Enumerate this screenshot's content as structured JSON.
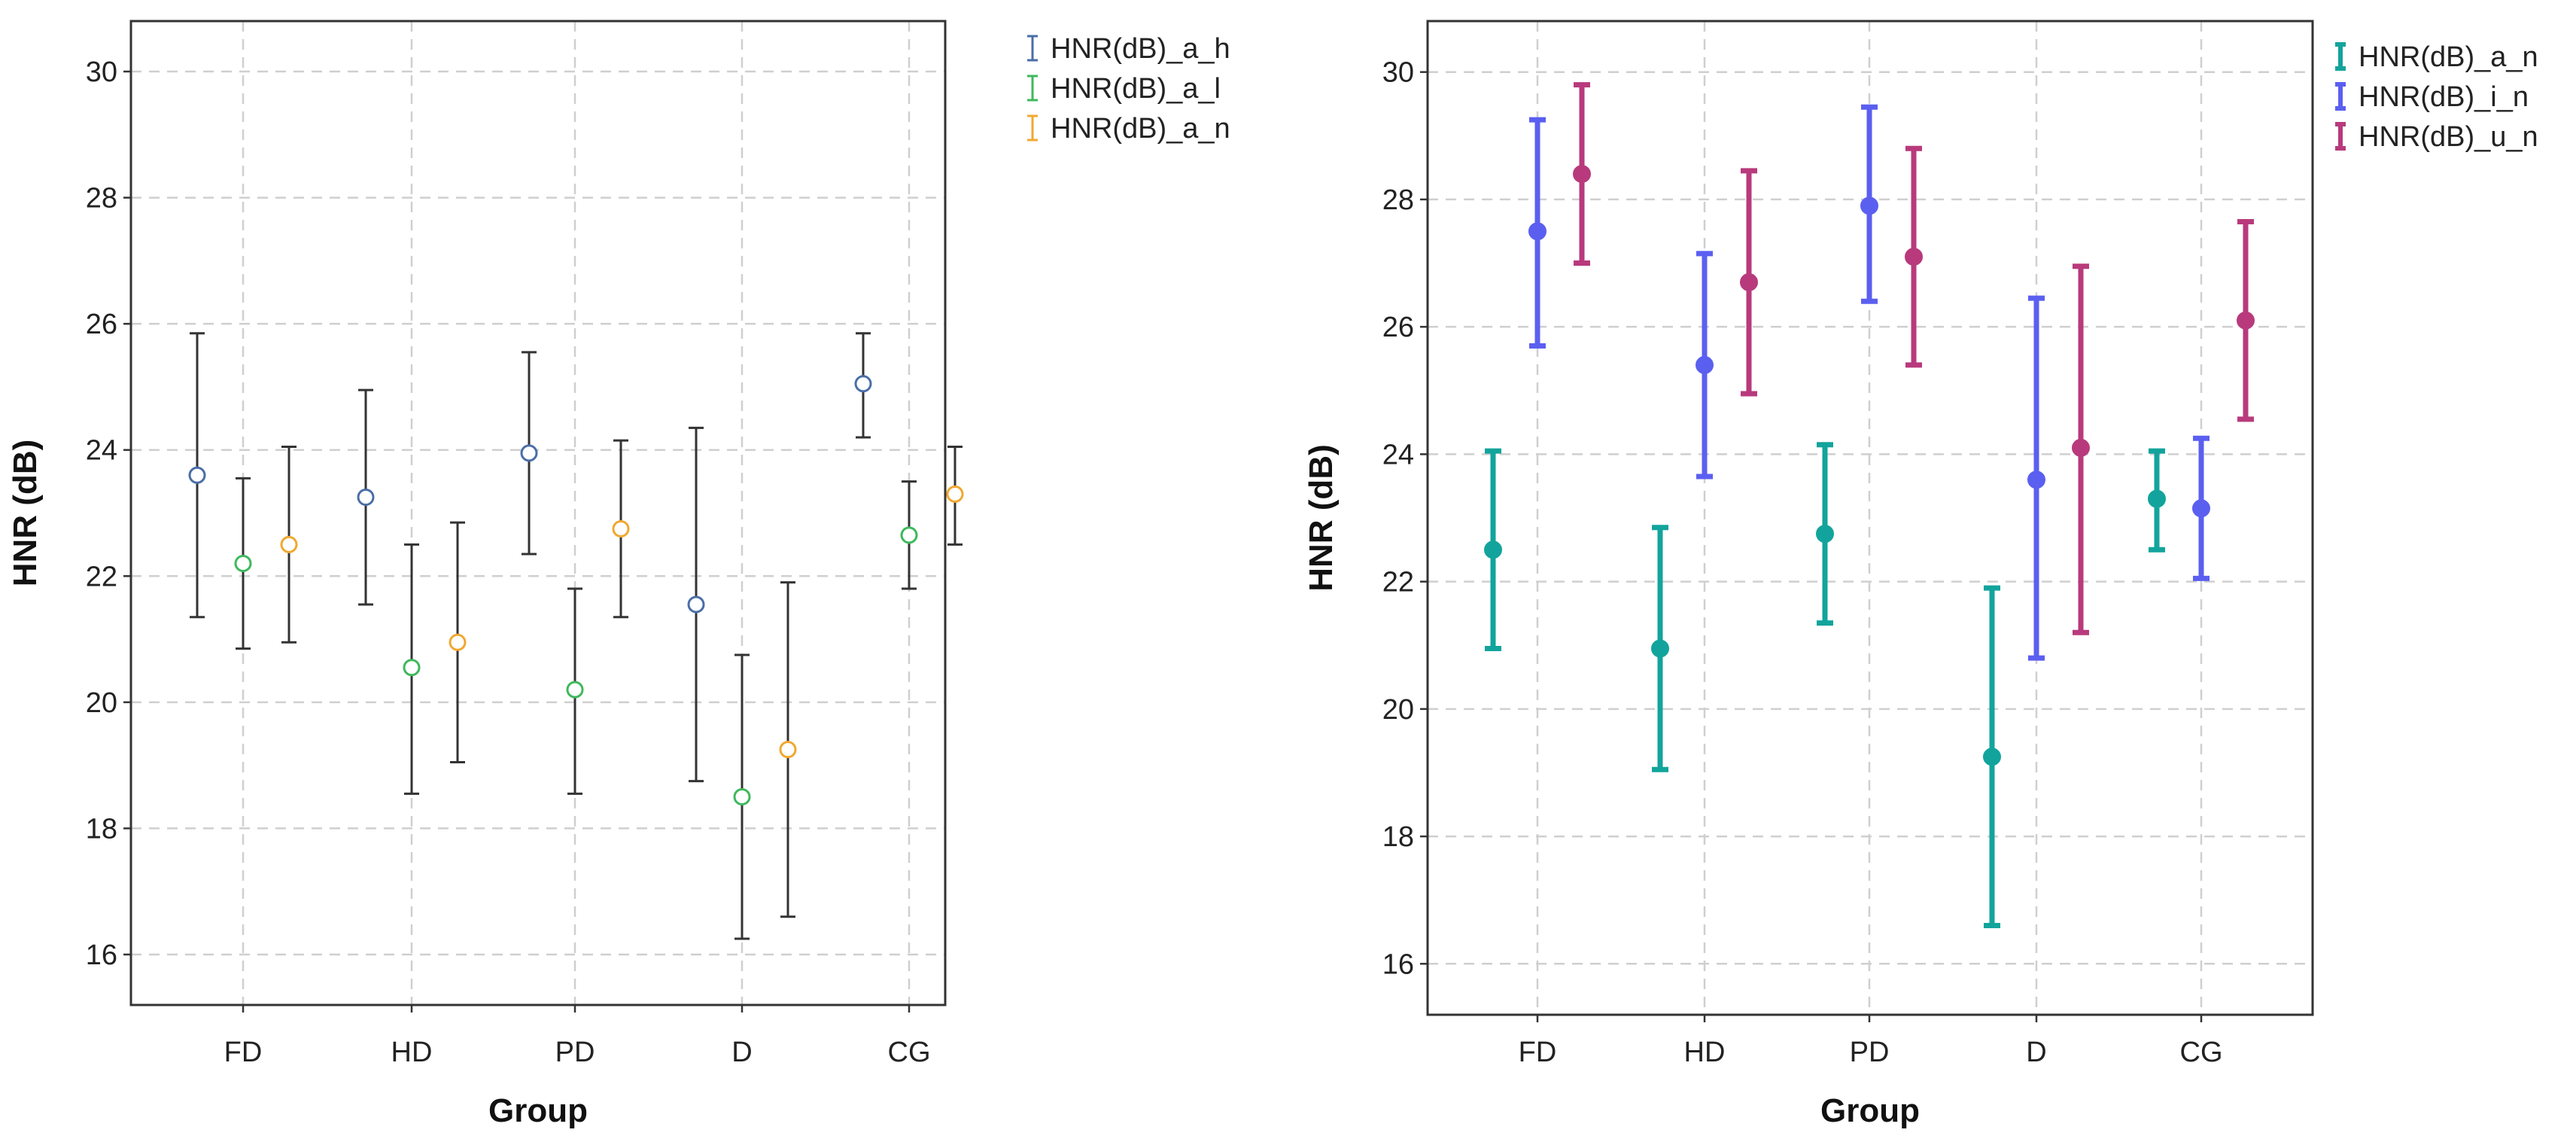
{
  "chart_data": [
    {
      "type": "errorbar",
      "style": "open-circle",
      "categories": [
        "FD",
        "HD",
        "PD",
        "D",
        "CG"
      ],
      "xlabel": "Group",
      "ylabel": "HNR (dB)",
      "ylim": [
        15.2,
        30.8
      ],
      "yticks": [
        16,
        18,
        20,
        22,
        24,
        26,
        28,
        30
      ],
      "grid": true,
      "legend_position": "outside-right-top",
      "series": [
        {
          "name": "HNR(dB)_a_h",
          "color": "#4a6ea8",
          "bar_color": "#333333",
          "values": [
            23.6,
            23.25,
            23.95,
            21.55,
            25.05
          ],
          "lower": [
            21.35,
            21.55,
            22.35,
            18.75,
            24.2
          ],
          "upper": [
            25.85,
            24.95,
            25.55,
            24.35,
            25.85
          ]
        },
        {
          "name": "HNR(dB)_a_l",
          "color": "#3fb85c",
          "bar_color": "#333333",
          "values": [
            22.2,
            20.55,
            20.2,
            18.5,
            22.65
          ],
          "lower": [
            20.85,
            18.55,
            18.55,
            16.25,
            21.8
          ],
          "upper": [
            23.55,
            22.5,
            21.8,
            20.75,
            23.5
          ]
        },
        {
          "name": "HNR(dB)_a_n",
          "color": "#f0a830",
          "bar_color": "#333333",
          "values": [
            22.5,
            20.95,
            22.75,
            19.25,
            23.3
          ],
          "lower": [
            20.95,
            19.05,
            21.35,
            16.6,
            22.5
          ],
          "upper": [
            24.05,
            22.85,
            24.15,
            21.9,
            24.05
          ]
        }
      ]
    },
    {
      "type": "errorbar",
      "style": "filled-circle",
      "categories": [
        "FD",
        "HD",
        "PD",
        "D",
        "CG"
      ],
      "xlabel": "Group",
      "ylabel": "HNR (dB)",
      "ylim": [
        15.2,
        30.8
      ],
      "yticks": [
        16,
        18,
        20,
        22,
        24,
        26,
        28,
        30
      ],
      "grid": true,
      "legend_position": "outside-right-top",
      "series": [
        {
          "name": "HNR(dB)_a_n",
          "color": "#12a49c",
          "values": [
            22.5,
            20.95,
            22.75,
            19.25,
            23.3
          ],
          "lower": [
            20.95,
            19.05,
            21.35,
            16.6,
            22.5
          ],
          "upper": [
            24.05,
            22.85,
            24.15,
            21.9,
            24.05
          ]
        },
        {
          "name": "HNR(dB)_i_n",
          "color": "#5b5ff0",
          "values": [
            27.5,
            25.4,
            27.9,
            23.6,
            23.15
          ],
          "lower": [
            25.7,
            23.65,
            26.4,
            20.8,
            22.05
          ],
          "upper": [
            29.25,
            27.15,
            29.45,
            26.45,
            24.25
          ]
        },
        {
          "name": "HNR(dB)_u_n",
          "color": "#b83a7c",
          "values": [
            28.4,
            26.7,
            27.1,
            24.1,
            26.1
          ],
          "lower": [
            27.0,
            24.95,
            25.4,
            21.2,
            24.55
          ],
          "upper": [
            29.8,
            28.45,
            28.8,
            26.95,
            27.65
          ]
        }
      ]
    }
  ]
}
